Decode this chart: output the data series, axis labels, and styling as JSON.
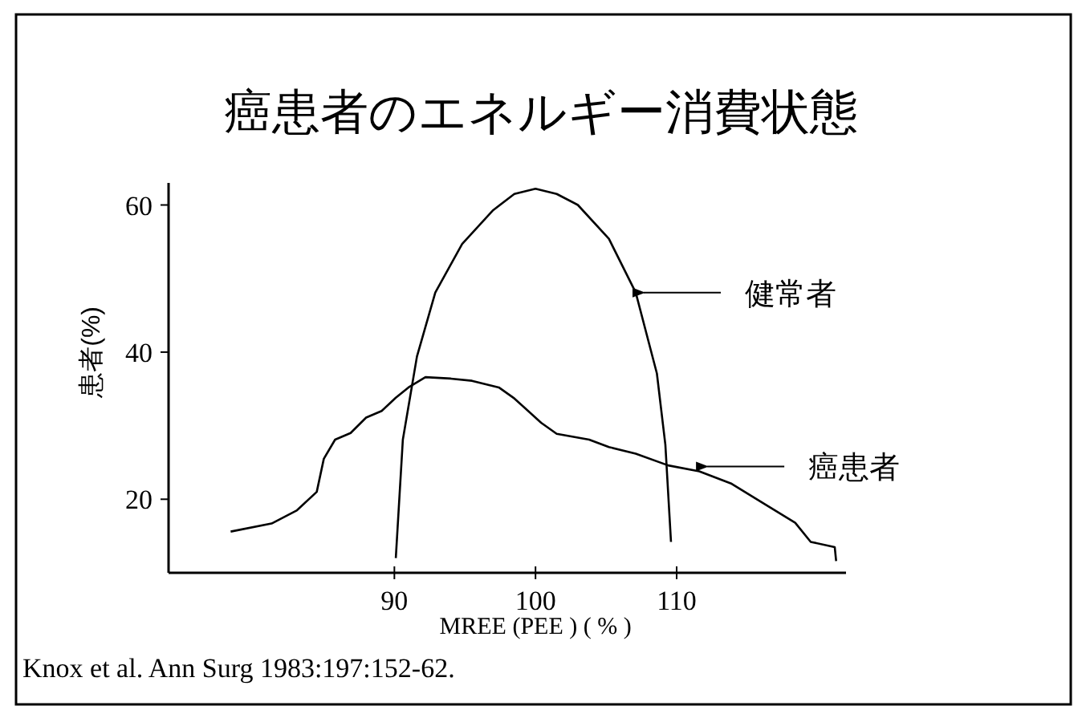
{
  "chart_data": {
    "type": "line",
    "title": "癌患者のエネルギー消費状態",
    "xlabel": "MREE (PEE ) ( % )",
    "ylabel": "患者(%)",
    "xlim": [
      74,
      122
    ],
    "ylim": [
      10,
      63
    ],
    "xticks": [
      90,
      100,
      110
    ],
    "yticks": [
      20,
      40,
      60
    ],
    "grid": false,
    "legend": "right",
    "marker": "none",
    "line_style": "solid",
    "series": [
      {
        "name": "健常者",
        "color": "#000000",
        "x": [
          90.1,
          90.6,
          91.6,
          92.9,
          94.8,
          97.0,
          98.5,
          100.0,
          101.5,
          103.0,
          105.2,
          107.1,
          108.6,
          109.2,
          109.6
        ],
        "values": [
          12.0,
          28.1,
          39.4,
          48.1,
          54.7,
          59.3,
          61.5,
          62.2,
          61.5,
          60.0,
          55.4,
          48.1,
          37.1,
          27.4,
          14.2
        ]
      },
      {
        "name": "癌患者",
        "color": "#000000",
        "x": [
          78.4,
          81.3,
          83.1,
          84.5,
          85.0,
          85.8,
          86.9,
          88.0,
          89.1,
          90.1,
          91.0,
          92.2,
          94.0,
          95.5,
          97.4,
          98.5,
          100.4,
          101.5,
          103.8,
          105.2,
          107.1,
          109.4,
          111.6,
          113.9,
          116.1,
          118.4,
          119.5,
          121.2,
          121.3
        ],
        "values": [
          15.6,
          16.7,
          18.5,
          21.0,
          25.5,
          28.1,
          29.0,
          31.1,
          32.0,
          33.8,
          35.2,
          36.6,
          36.4,
          36.1,
          35.2,
          33.7,
          30.4,
          28.9,
          28.1,
          27.1,
          26.2,
          24.6,
          23.8,
          22.1,
          19.5,
          16.8,
          14.2,
          13.5,
          11.6
        ]
      }
    ],
    "annotations": [
      "Knox et al. Ann Surg 1983:197:152-62."
    ]
  }
}
